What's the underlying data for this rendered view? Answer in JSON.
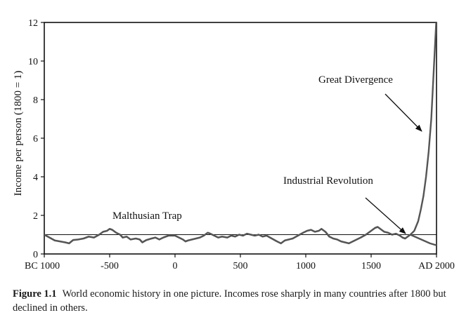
{
  "chart_data": {
    "type": "line",
    "title": "",
    "ylabel": "Income per person (1800 = 1)",
    "xlabel": "",
    "ylim": [
      0,
      12
    ],
    "xlim": [
      -1000,
      2000
    ],
    "grid": false,
    "y_ticks": [
      "0",
      "2",
      "4",
      "6",
      "8",
      "10",
      "12"
    ],
    "x_ticks": [
      {
        "value": -1000,
        "label": "BC 1000"
      },
      {
        "value": -500,
        "label": "-500"
      },
      {
        "value": 0,
        "label": "0"
      },
      {
        "value": 500,
        "label": "500"
      },
      {
        "value": 1000,
        "label": "1000"
      },
      {
        "value": 1500,
        "label": "1500"
      },
      {
        "value": 2000,
        "label": "AD 2000"
      }
    ],
    "reference_line": {
      "y": 1
    },
    "series": [
      {
        "points": [
          [
            -1000,
            1.0
          ],
          [
            -960,
            0.85
          ],
          [
            -920,
            0.7
          ],
          [
            -880,
            0.65
          ],
          [
            -840,
            0.6
          ],
          [
            -810,
            0.55
          ],
          [
            -780,
            0.72
          ],
          [
            -740,
            0.75
          ],
          [
            -700,
            0.8
          ],
          [
            -660,
            0.9
          ],
          [
            -620,
            0.85
          ],
          [
            -580,
            1.0
          ],
          [
            -550,
            1.15
          ],
          [
            -520,
            1.2
          ],
          [
            -500,
            1.3
          ],
          [
            -480,
            1.25
          ],
          [
            -450,
            1.1
          ],
          [
            -420,
            1.0
          ],
          [
            -400,
            0.85
          ],
          [
            -370,
            0.9
          ],
          [
            -340,
            0.75
          ],
          [
            -300,
            0.8
          ],
          [
            -270,
            0.75
          ],
          [
            -250,
            0.6
          ],
          [
            -220,
            0.72
          ],
          [
            -180,
            0.8
          ],
          [
            -150,
            0.85
          ],
          [
            -120,
            0.75
          ],
          [
            -90,
            0.85
          ],
          [
            -50,
            0.95
          ],
          [
            -20,
            0.95
          ],
          [
            0,
            0.95
          ],
          [
            30,
            0.85
          ],
          [
            60,
            0.75
          ],
          [
            80,
            0.65
          ],
          [
            100,
            0.7
          ],
          [
            130,
            0.75
          ],
          [
            160,
            0.8
          ],
          [
            190,
            0.85
          ],
          [
            220,
            0.95
          ],
          [
            250,
            1.1
          ],
          [
            270,
            1.05
          ],
          [
            300,
            0.95
          ],
          [
            330,
            0.85
          ],
          [
            360,
            0.9
          ],
          [
            400,
            0.85
          ],
          [
            430,
            0.95
          ],
          [
            460,
            0.9
          ],
          [
            490,
            1.0
          ],
          [
            520,
            0.95
          ],
          [
            550,
            1.05
          ],
          [
            580,
            1.0
          ],
          [
            610,
            0.95
          ],
          [
            640,
            1.0
          ],
          [
            670,
            0.9
          ],
          [
            700,
            0.95
          ],
          [
            740,
            0.8
          ],
          [
            780,
            0.65
          ],
          [
            810,
            0.55
          ],
          [
            840,
            0.7
          ],
          [
            870,
            0.75
          ],
          [
            900,
            0.8
          ],
          [
            940,
            0.95
          ],
          [
            980,
            1.1
          ],
          [
            1010,
            1.2
          ],
          [
            1040,
            1.25
          ],
          [
            1070,
            1.15
          ],
          [
            1100,
            1.2
          ],
          [
            1120,
            1.3
          ],
          [
            1150,
            1.15
          ],
          [
            1180,
            0.9
          ],
          [
            1210,
            0.8
          ],
          [
            1240,
            0.75
          ],
          [
            1270,
            0.65
          ],
          [
            1300,
            0.6
          ],
          [
            1330,
            0.55
          ],
          [
            1360,
            0.65
          ],
          [
            1390,
            0.75
          ],
          [
            1420,
            0.85
          ],
          [
            1460,
            1.0
          ],
          [
            1500,
            1.2
          ],
          [
            1530,
            1.35
          ],
          [
            1550,
            1.4
          ],
          [
            1570,
            1.3
          ],
          [
            1600,
            1.15
          ],
          [
            1630,
            1.1
          ],
          [
            1660,
            1.0
          ],
          [
            1690,
            1.05
          ],
          [
            1720,
            0.95
          ],
          [
            1740,
            0.85
          ],
          [
            1760,
            0.8
          ],
          [
            1780,
            0.9
          ],
          [
            1800,
            1.0
          ]
        ]
      },
      {
        "points": [
          [
            1800,
            1.0
          ],
          [
            1830,
            1.2
          ],
          [
            1860,
            1.7
          ],
          [
            1880,
            2.3
          ],
          [
            1900,
            3.0
          ],
          [
            1920,
            4.0
          ],
          [
            1940,
            5.3
          ],
          [
            1960,
            7.0
          ],
          [
            1975,
            9.0
          ],
          [
            1990,
            11.0
          ],
          [
            2000,
            12.3
          ]
        ]
      },
      {
        "points": [
          [
            1800,
            1.0
          ],
          [
            1850,
            0.85
          ],
          [
            1900,
            0.7
          ],
          [
            1950,
            0.55
          ],
          [
            2000,
            0.45
          ]
        ]
      }
    ],
    "annotations": [
      {
        "text": "Malthusian Trap"
      },
      {
        "text": "Industrial Revolution"
      },
      {
        "text": "Great Divergence"
      }
    ]
  },
  "caption": {
    "figure_label": "Figure 1.1",
    "text": "World economic history in one picture. Incomes rose sharply in many countries after 1800 but declined in others."
  }
}
